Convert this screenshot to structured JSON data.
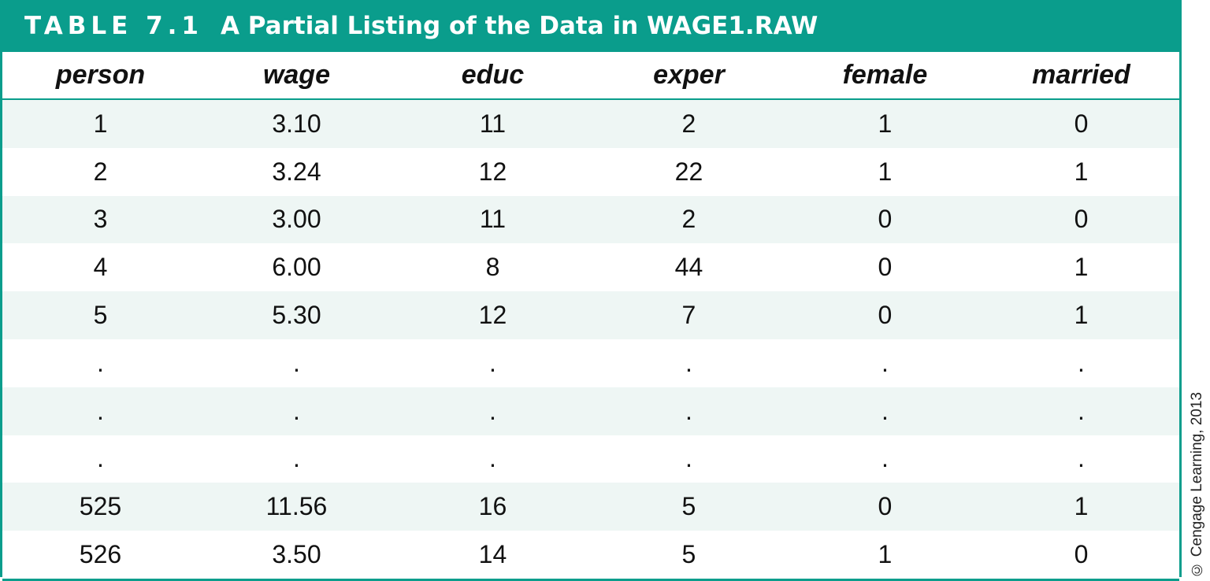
{
  "title": {
    "label": "TABLE 7.1",
    "caption": "A Partial Listing of the Data in WAGE1.RAW"
  },
  "columns": [
    "person",
    "wage",
    "educ",
    "exper",
    "female",
    "married"
  ],
  "rows": [
    [
      "1",
      "3.10",
      "11",
      "2",
      "1",
      "0"
    ],
    [
      "2",
      "3.24",
      "12",
      "22",
      "1",
      "1"
    ],
    [
      "3",
      "3.00",
      "11",
      "2",
      "0",
      "0"
    ],
    [
      "4",
      "6.00",
      "8",
      "44",
      "0",
      "1"
    ],
    [
      "5",
      "5.30",
      "12",
      "7",
      "0",
      "1"
    ],
    [
      ".",
      ".",
      ".",
      ".",
      ".",
      "."
    ],
    [
      ".",
      ".",
      ".",
      ".",
      ".",
      "."
    ],
    [
      ".",
      ".",
      ".",
      ".",
      ".",
      "."
    ],
    [
      "525",
      "11.56",
      "16",
      "5",
      "0",
      "1"
    ],
    [
      "526",
      "3.50",
      "14",
      "5",
      "1",
      "0"
    ]
  ],
  "credit": "© Cengage Learning, 2013",
  "colors": {
    "accent": "#0a9d8c",
    "stripe": "#eef6f4"
  }
}
